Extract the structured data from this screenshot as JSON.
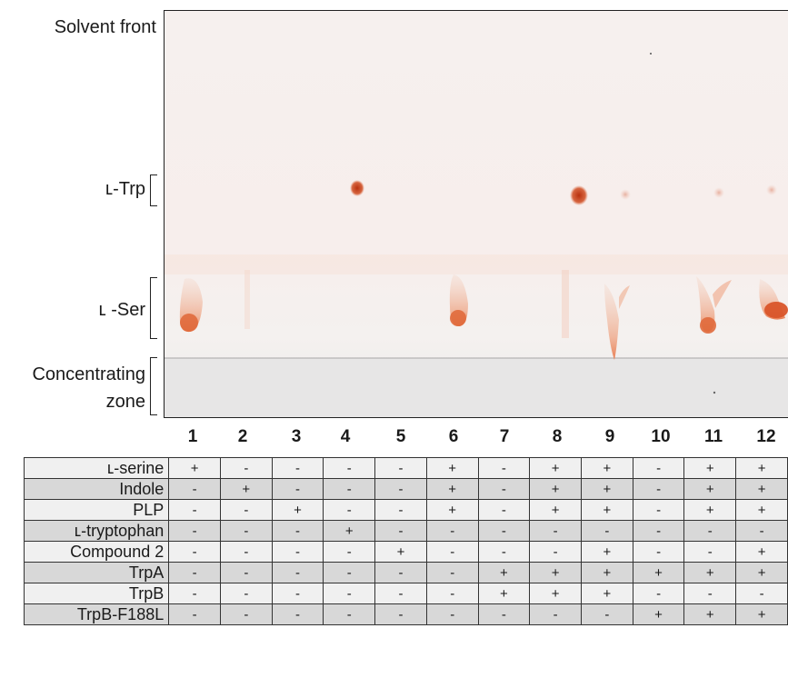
{
  "labels": {
    "solvent_front": "Solvent front",
    "trp": "ʟ-Trp",
    "ser": "ʟ -Ser",
    "concentrating_1": "Concentrating",
    "concentrating_2": "zone"
  },
  "lanes": [
    "1",
    "2",
    "3",
    "4",
    "5",
    "6",
    "7",
    "8",
    "9",
    "10",
    "11",
    "12"
  ],
  "rows": [
    {
      "label": "ʟ-serine",
      "values": [
        "+",
        "-",
        "-",
        "-",
        "-",
        "+",
        "-",
        "+",
        "+",
        "-",
        "+",
        "+"
      ]
    },
    {
      "label": "Indole",
      "values": [
        "-",
        "+",
        "-",
        "-",
        "-",
        "+",
        "-",
        "+",
        "+",
        "-",
        "+",
        "+"
      ]
    },
    {
      "label": "PLP",
      "values": [
        "-",
        "-",
        "+",
        "-",
        "-",
        "+",
        "-",
        "+",
        "+",
        "-",
        "+",
        "+"
      ]
    },
    {
      "label": "ʟ-tryptophan",
      "values": [
        "-",
        "-",
        "-",
        "+",
        "-",
        "-",
        "-",
        "-",
        "-",
        "-",
        "-",
        "-"
      ]
    },
    {
      "label": "Compound 2",
      "values": [
        "-",
        "-",
        "-",
        "-",
        "+",
        "-",
        "-",
        "-",
        "+",
        "-",
        "-",
        "+"
      ]
    },
    {
      "label": "TrpA",
      "values": [
        "-",
        "-",
        "-",
        "-",
        "-",
        "-",
        "+",
        "+",
        "+",
        "+",
        "+",
        "+"
      ]
    },
    {
      "label": "TrpB",
      "values": [
        "-",
        "-",
        "-",
        "-",
        "-",
        "-",
        "+",
        "+",
        "+",
        "-",
        "-",
        "-"
      ]
    },
    {
      "label": "TrpB-F188L",
      "values": [
        "-",
        "-",
        "-",
        "-",
        "-",
        "-",
        "-",
        "-",
        "-",
        "+",
        "+",
        "+"
      ]
    }
  ],
  "colors": {
    "spot": "#c8461e",
    "row_shade": "#d8d8d8",
    "row_light": "#f0f0f0"
  }
}
